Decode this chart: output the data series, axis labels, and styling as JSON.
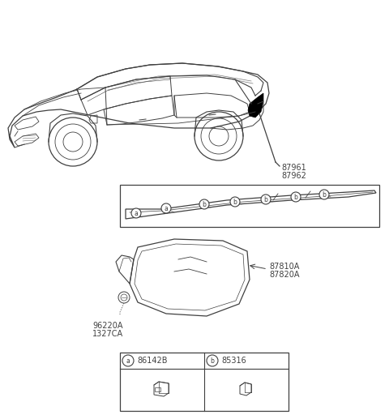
{
  "bg_color": "#ffffff",
  "line_color": "#404040",
  "label_87961": "87961",
  "label_87962": "87962",
  "label_87810A": "87810A",
  "label_87820A": "87820A",
  "label_96220A": "96220A",
  "label_1327CA": "1327CA",
  "label_a": "86142B",
  "label_b": "85316",
  "font_size_label": 7.0,
  "font_size_circle": 5.5,
  "font_size_part": 7.0
}
